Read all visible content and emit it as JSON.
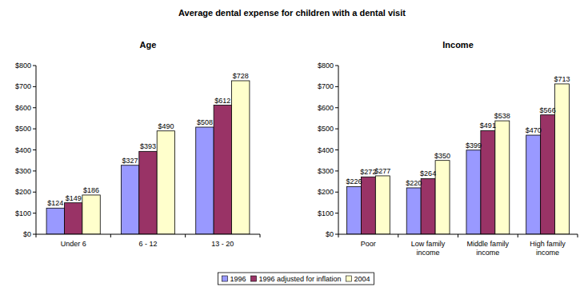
{
  "title": "Average dental expense for children with a dental visit",
  "chart_data": [
    {
      "type": "bar",
      "title": "Age",
      "categories": [
        "Under 6",
        "6 - 12",
        "13 - 20"
      ],
      "series": [
        {
          "name": "1996",
          "color": "#9999ff",
          "values": [
            124,
            327,
            508
          ],
          "value_labels": [
            "$124",
            "$327",
            "$508"
          ]
        },
        {
          "name": "1996 adjusted for inflation",
          "color": "#993366",
          "values": [
            149,
            393,
            612
          ],
          "value_labels": [
            "$149",
            "$393",
            "$612"
          ]
        },
        {
          "name": "2004",
          "color": "#ffffcc",
          "values": [
            186,
            490,
            728
          ],
          "value_labels": [
            "$186",
            "$490",
            "$728"
          ]
        }
      ],
      "ylim": [
        0,
        800
      ],
      "yticks": [
        {
          "value": 0,
          "label": "$0"
        },
        {
          "value": 100,
          "label": "$100"
        },
        {
          "value": 200,
          "label": "$200"
        },
        {
          "value": 300,
          "label": "$300"
        },
        {
          "value": 400,
          "label": "$400"
        },
        {
          "value": 500,
          "label": "$500"
        },
        {
          "value": 600,
          "label": "$600"
        },
        {
          "value": 700,
          "label": "$700"
        },
        {
          "value": 800,
          "label": "$800"
        }
      ],
      "grid": false,
      "data_labels": true,
      "legend": "bottom"
    },
    {
      "type": "bar",
      "title": "Income",
      "categories": [
        "Poor",
        "Low family income",
        "Middle family income",
        "High family income"
      ],
      "series": [
        {
          "color": "#9999ff",
          "values": [
            226,
            220,
            399,
            470
          ],
          "value_labels": [
            "$226",
            "$220",
            "$399",
            "$470"
          ]
        },
        {
          "color": "#993366",
          "values": [
            272,
            264,
            491,
            566
          ],
          "value_labels": [
            "$272",
            "$264",
            "$491",
            "$566"
          ]
        },
        {
          "color": "#ffffcc",
          "values": [
            277,
            350,
            538,
            713
          ],
          "value_labels": [
            "$277",
            "$350",
            "$538",
            "$713"
          ]
        }
      ],
      "ylim": [
        0,
        800
      ],
      "yticks": [
        {
          "value": 0,
          "label": "$0"
        },
        {
          "value": 100,
          "label": "$100"
        },
        {
          "value": 200,
          "label": "$200"
        },
        {
          "value": 300,
          "label": "$300"
        },
        {
          "value": 400,
          "label": "$400"
        },
        {
          "value": 500,
          "label": "$500"
        },
        {
          "value": 600,
          "label": "$600"
        },
        {
          "value": 700,
          "label": "$700"
        },
        {
          "value": 800,
          "label": "$800"
        }
      ],
      "grid": false,
      "data_labels": true
    }
  ]
}
